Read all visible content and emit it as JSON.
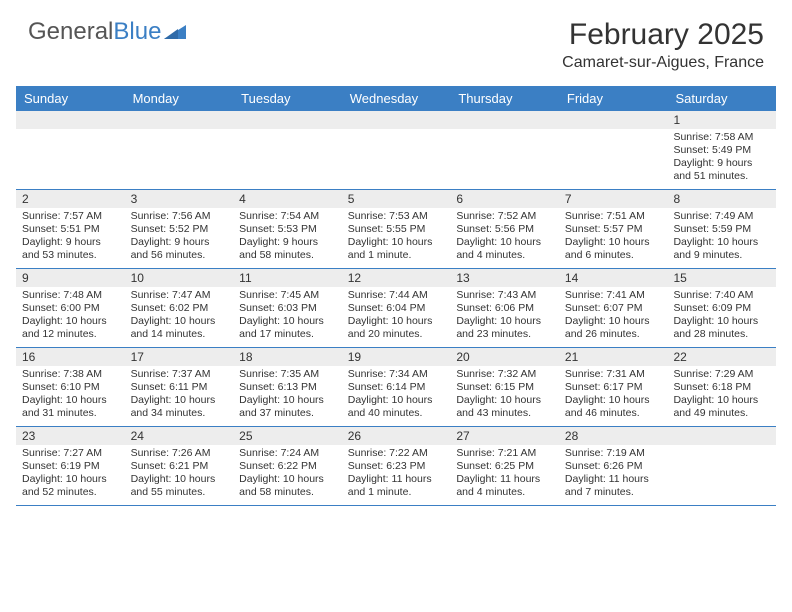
{
  "logo": {
    "text1": "General",
    "text2": "Blue"
  },
  "title": "February 2025",
  "location": "Camaret-sur-Aigues, France",
  "colors": {
    "header_bg": "#3b7fc4",
    "header_text": "#ffffff",
    "daynum_bg": "#ededed",
    "border": "#3b7fc4",
    "text": "#333333",
    "logo_gray": "#555555",
    "logo_blue": "#3b7fc4",
    "page_bg": "#ffffff"
  },
  "day_names": [
    "Sunday",
    "Monday",
    "Tuesday",
    "Wednesday",
    "Thursday",
    "Friday",
    "Saturday"
  ],
  "weeks": [
    [
      {
        "n": "",
        "sr": "",
        "ss": "",
        "dl": ""
      },
      {
        "n": "",
        "sr": "",
        "ss": "",
        "dl": ""
      },
      {
        "n": "",
        "sr": "",
        "ss": "",
        "dl": ""
      },
      {
        "n": "",
        "sr": "",
        "ss": "",
        "dl": ""
      },
      {
        "n": "",
        "sr": "",
        "ss": "",
        "dl": ""
      },
      {
        "n": "",
        "sr": "",
        "ss": "",
        "dl": ""
      },
      {
        "n": "1",
        "sr": "Sunrise: 7:58 AM",
        "ss": "Sunset: 5:49 PM",
        "dl": "Daylight: 9 hours and 51 minutes."
      }
    ],
    [
      {
        "n": "2",
        "sr": "Sunrise: 7:57 AM",
        "ss": "Sunset: 5:51 PM",
        "dl": "Daylight: 9 hours and 53 minutes."
      },
      {
        "n": "3",
        "sr": "Sunrise: 7:56 AM",
        "ss": "Sunset: 5:52 PM",
        "dl": "Daylight: 9 hours and 56 minutes."
      },
      {
        "n": "4",
        "sr": "Sunrise: 7:54 AM",
        "ss": "Sunset: 5:53 PM",
        "dl": "Daylight: 9 hours and 58 minutes."
      },
      {
        "n": "5",
        "sr": "Sunrise: 7:53 AM",
        "ss": "Sunset: 5:55 PM",
        "dl": "Daylight: 10 hours and 1 minute."
      },
      {
        "n": "6",
        "sr": "Sunrise: 7:52 AM",
        "ss": "Sunset: 5:56 PM",
        "dl": "Daylight: 10 hours and 4 minutes."
      },
      {
        "n": "7",
        "sr": "Sunrise: 7:51 AM",
        "ss": "Sunset: 5:57 PM",
        "dl": "Daylight: 10 hours and 6 minutes."
      },
      {
        "n": "8",
        "sr": "Sunrise: 7:49 AM",
        "ss": "Sunset: 5:59 PM",
        "dl": "Daylight: 10 hours and 9 minutes."
      }
    ],
    [
      {
        "n": "9",
        "sr": "Sunrise: 7:48 AM",
        "ss": "Sunset: 6:00 PM",
        "dl": "Daylight: 10 hours and 12 minutes."
      },
      {
        "n": "10",
        "sr": "Sunrise: 7:47 AM",
        "ss": "Sunset: 6:02 PM",
        "dl": "Daylight: 10 hours and 14 minutes."
      },
      {
        "n": "11",
        "sr": "Sunrise: 7:45 AM",
        "ss": "Sunset: 6:03 PM",
        "dl": "Daylight: 10 hours and 17 minutes."
      },
      {
        "n": "12",
        "sr": "Sunrise: 7:44 AM",
        "ss": "Sunset: 6:04 PM",
        "dl": "Daylight: 10 hours and 20 minutes."
      },
      {
        "n": "13",
        "sr": "Sunrise: 7:43 AM",
        "ss": "Sunset: 6:06 PM",
        "dl": "Daylight: 10 hours and 23 minutes."
      },
      {
        "n": "14",
        "sr": "Sunrise: 7:41 AM",
        "ss": "Sunset: 6:07 PM",
        "dl": "Daylight: 10 hours and 26 minutes."
      },
      {
        "n": "15",
        "sr": "Sunrise: 7:40 AM",
        "ss": "Sunset: 6:09 PM",
        "dl": "Daylight: 10 hours and 28 minutes."
      }
    ],
    [
      {
        "n": "16",
        "sr": "Sunrise: 7:38 AM",
        "ss": "Sunset: 6:10 PM",
        "dl": "Daylight: 10 hours and 31 minutes."
      },
      {
        "n": "17",
        "sr": "Sunrise: 7:37 AM",
        "ss": "Sunset: 6:11 PM",
        "dl": "Daylight: 10 hours and 34 minutes."
      },
      {
        "n": "18",
        "sr": "Sunrise: 7:35 AM",
        "ss": "Sunset: 6:13 PM",
        "dl": "Daylight: 10 hours and 37 minutes."
      },
      {
        "n": "19",
        "sr": "Sunrise: 7:34 AM",
        "ss": "Sunset: 6:14 PM",
        "dl": "Daylight: 10 hours and 40 minutes."
      },
      {
        "n": "20",
        "sr": "Sunrise: 7:32 AM",
        "ss": "Sunset: 6:15 PM",
        "dl": "Daylight: 10 hours and 43 minutes."
      },
      {
        "n": "21",
        "sr": "Sunrise: 7:31 AM",
        "ss": "Sunset: 6:17 PM",
        "dl": "Daylight: 10 hours and 46 minutes."
      },
      {
        "n": "22",
        "sr": "Sunrise: 7:29 AM",
        "ss": "Sunset: 6:18 PM",
        "dl": "Daylight: 10 hours and 49 minutes."
      }
    ],
    [
      {
        "n": "23",
        "sr": "Sunrise: 7:27 AM",
        "ss": "Sunset: 6:19 PM",
        "dl": "Daylight: 10 hours and 52 minutes."
      },
      {
        "n": "24",
        "sr": "Sunrise: 7:26 AM",
        "ss": "Sunset: 6:21 PM",
        "dl": "Daylight: 10 hours and 55 minutes."
      },
      {
        "n": "25",
        "sr": "Sunrise: 7:24 AM",
        "ss": "Sunset: 6:22 PM",
        "dl": "Daylight: 10 hours and 58 minutes."
      },
      {
        "n": "26",
        "sr": "Sunrise: 7:22 AM",
        "ss": "Sunset: 6:23 PM",
        "dl": "Daylight: 11 hours and 1 minute."
      },
      {
        "n": "27",
        "sr": "Sunrise: 7:21 AM",
        "ss": "Sunset: 6:25 PM",
        "dl": "Daylight: 11 hours and 4 minutes."
      },
      {
        "n": "28",
        "sr": "Sunrise: 7:19 AM",
        "ss": "Sunset: 6:26 PM",
        "dl": "Daylight: 11 hours and 7 minutes."
      },
      {
        "n": "",
        "sr": "",
        "ss": "",
        "dl": ""
      }
    ]
  ]
}
